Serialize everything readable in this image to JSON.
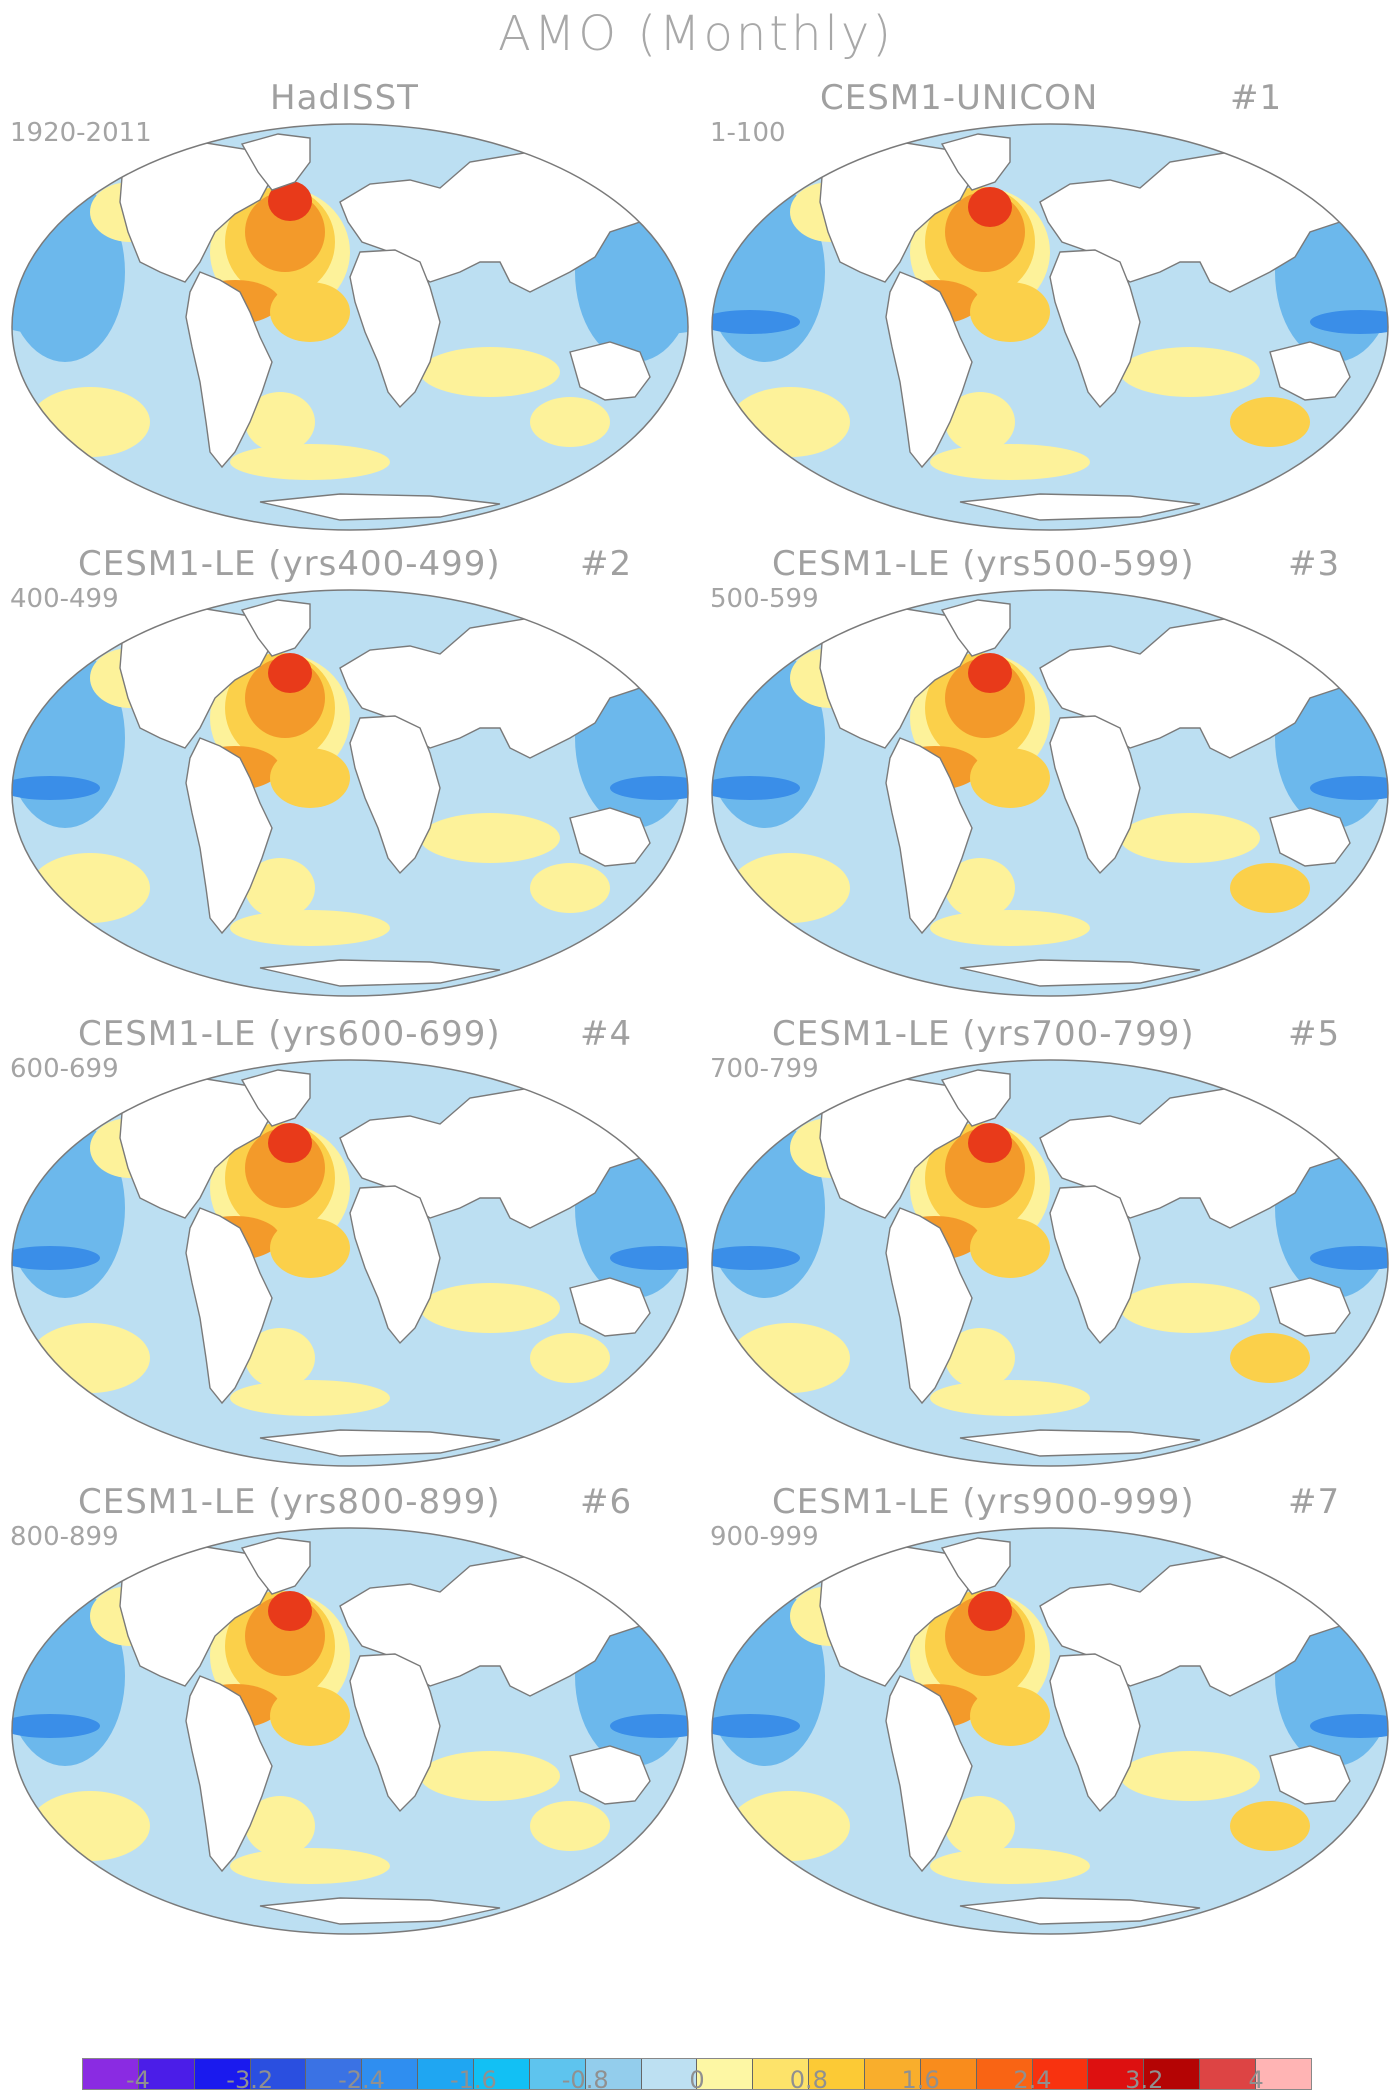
{
  "title": "AMO (Monthly)",
  "panels": [
    {
      "id": "p0",
      "title": "HadISST",
      "number": "",
      "years": "1920-2011"
    },
    {
      "id": "p1",
      "title": "CESM1-UNICON",
      "number": "#1",
      "years": "1-100"
    },
    {
      "id": "p2",
      "title": "CESM1-LE (yrs400-499)",
      "number": "#2",
      "years": "400-499"
    },
    {
      "id": "p3",
      "title": "CESM1-LE (yrs500-599)",
      "number": "#3",
      "years": "500-599"
    },
    {
      "id": "p4",
      "title": "CESM1-LE (yrs600-699)",
      "number": "#4",
      "years": "600-699"
    },
    {
      "id": "p5",
      "title": "CESM1-LE (yrs700-799)",
      "number": "#5",
      "years": "700-799"
    },
    {
      "id": "p6",
      "title": "CESM1-LE (yrs800-899)",
      "number": "#6",
      "years": "800-899"
    },
    {
      "id": "p7",
      "title": "CESM1-LE (yrs900-999)",
      "number": "#7",
      "years": "900-999"
    }
  ],
  "colorbar": {
    "colors": [
      "#8a2be2",
      "#4b1de8",
      "#1a1aee",
      "#2a4fe0",
      "#3a72e4",
      "#2f8ef0",
      "#1fa6f2",
      "#12c0f4",
      "#5ec4ee",
      "#93cdec",
      "#bde0f2",
      "#fdf7a4",
      "#fde36a",
      "#fcca35",
      "#f9ae2c",
      "#f98c1c",
      "#f96414",
      "#f8320f",
      "#dd1010",
      "#b40404",
      "#dd4444",
      "#ffb4b4"
    ],
    "labels": [
      "-4",
      "-3.2",
      "-2.4",
      "-1.6",
      "-0.8",
      "0",
      "0.8",
      "1.6",
      "2.4",
      "3.2",
      "4"
    ]
  },
  "legend": {
    "ocean_colors": {
      "neg_strong": "#3a8ee8",
      "neg": "#6cb8ec",
      "neg_weak": "#bcdff2",
      "pos_weak": "#fdf29a",
      "pos": "#fbd04a",
      "pos_strong": "#f39a2a",
      "pos_max": "#e83a1a",
      "land": "#ffffff"
    }
  }
}
